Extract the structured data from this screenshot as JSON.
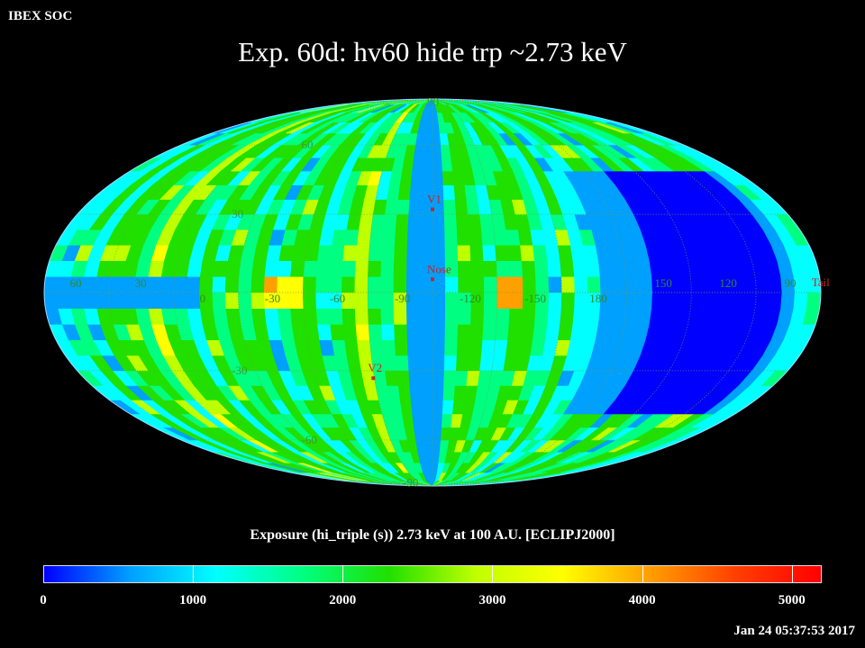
{
  "header": {
    "app_name": "IBEX SOC",
    "title": "Exp.   60d: hv60 hide trp ~2.73 keV",
    "timestamp": "Jan 24 05:37:53 2017"
  },
  "map": {
    "projection": "Mollweide",
    "background": "#000000",
    "grid_color": "#7a9a3a",
    "marker_color": "#cc2222",
    "lat_labels": [
      "90",
      "60",
      "30",
      "-30",
      "-60",
      "-90"
    ],
    "lon_labels": [
      "60",
      "30",
      "0",
      "-30",
      "-60",
      "-90",
      "-120",
      "-150",
      "180",
      "150",
      "120",
      "90"
    ],
    "markers": [
      {
        "name": "V1",
        "lon": -95,
        "lat": 32
      },
      {
        "name": "Nose",
        "lon": -105,
        "lat": 5
      },
      {
        "name": "V2",
        "lon": -70,
        "lat": -33
      },
      {
        "name": "Tail",
        "lon": 75,
        "lat": 0
      }
    ]
  },
  "colorbar": {
    "title": "Exposure (hi_triple (s))  2.73 keV at 100 A.U. [ECLIPJ2000]",
    "min": 0,
    "max": 5200,
    "tick_labels": [
      "0",
      "1000",
      "2000",
      "3000",
      "4000",
      "5000"
    ],
    "tick_values": [
      0,
      1000,
      2000,
      3000,
      4000,
      5000
    ],
    "colors": [
      "#0000ff",
      "#00a0ff",
      "#00ffff",
      "#00ff80",
      "#20e000",
      "#c0ff00",
      "#ffff00",
      "#ffa000",
      "#ff4000",
      "#ff0000"
    ]
  }
}
